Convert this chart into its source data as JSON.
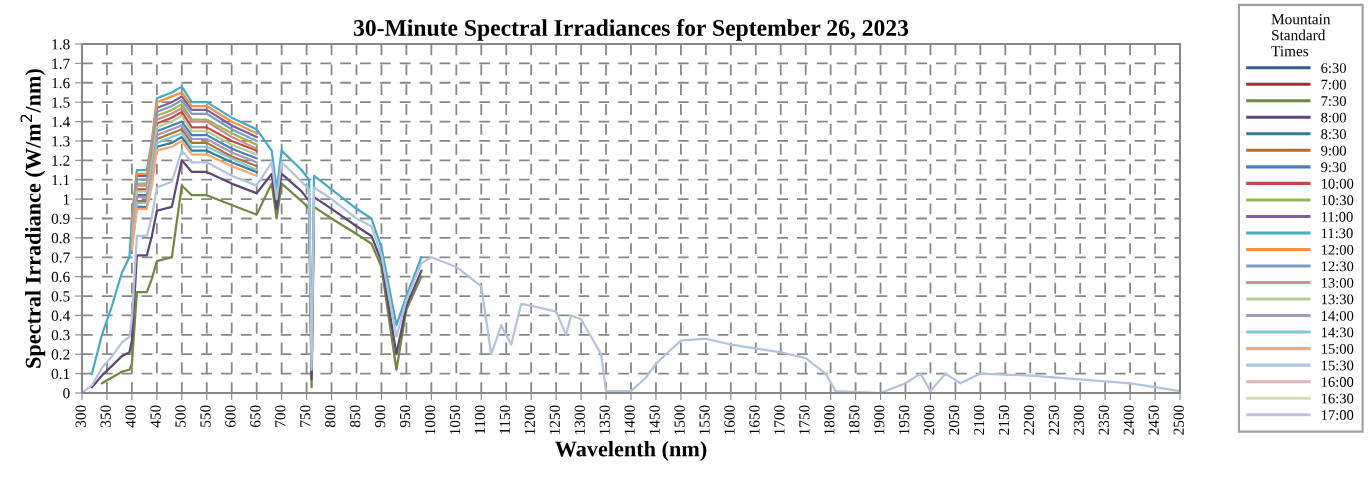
{
  "chart_data": {
    "type": "line",
    "title": "30-Minute Spectral Irradiances for September 26, 2023",
    "xlabel": "Wavelenth (nm)",
    "ylabel": "Spectral Irradiance (W/m$^{2}$/nm)",
    "legend_title": "Mountain Standard Times",
    "legend": "right",
    "grid": true,
    "marker": "none",
    "line_style": "solid",
    "xlim": [
      300,
      2500
    ],
    "xticks": [
      300,
      350,
      400,
      450,
      500,
      550,
      600,
      650,
      700,
      750,
      800,
      850,
      900,
      950,
      1000,
      1050,
      1100,
      1150,
      1200,
      1250,
      1300,
      1350,
      1400,
      1450,
      1500,
      1550,
      1600,
      1650,
      1700,
      1750,
      1800,
      1850,
      1900,
      1950,
      2000,
      2050,
      2100,
      2150,
      2200,
      2250,
      2300,
      2350,
      2400,
      2450,
      2500
    ],
    "ylim": [
      0,
      1.8
    ],
    "yticks": [
      0,
      0.1,
      0.2,
      0.3,
      0.4,
      0.5,
      0.6,
      0.7,
      0.8,
      0.9,
      1,
      1.1,
      1.2,
      1.3,
      1.4,
      1.5,
      1.6,
      1.7,
      1.8
    ],
    "x": [
      300,
      320,
      340,
      360,
      380,
      395,
      400,
      410,
      430,
      440,
      450,
      480,
      500,
      520,
      550,
      600,
      650,
      680,
      690,
      700,
      740,
      755,
      760,
      765,
      800,
      850,
      880,
      900,
      930,
      950,
      980,
      1000,
      1050,
      1100,
      1120,
      1140,
      1160,
      1180,
      1200,
      1250,
      1270,
      1280,
      1300,
      1340,
      1350,
      1400,
      1430,
      1450,
      1470,
      1500,
      1550,
      1600,
      1650,
      1700,
      1750,
      1790,
      1810,
      1900,
      1950,
      1980,
      2000,
      2030,
      2060,
      2100,
      2200,
      2300,
      2400,
      2450,
      2500
    ],
    "series": [
      {
        "name": "6:30",
        "color": "#385d8a",
        "values": [
          null,
          null,
          null,
          null,
          null,
          null,
          null,
          null,
          null,
          null,
          null,
          null,
          null,
          null,
          null,
          null,
          null,
          null,
          null,
          null,
          null,
          null,
          null,
          null,
          null,
          null,
          null,
          null,
          null,
          null,
          null,
          null,
          null,
          null,
          null,
          null,
          null,
          null,
          null,
          null,
          null,
          null,
          null,
          null,
          null,
          null,
          null,
          null,
          null,
          null,
          null,
          null,
          null,
          null,
          null,
          null,
          null,
          null,
          null,
          null,
          null,
          null,
          null,
          null,
          null,
          null,
          null,
          null,
          null
        ]
      },
      {
        "name": "7:00",
        "color": "#8c3836",
        "values": [
          null,
          null,
          null,
          null,
          null,
          null,
          null,
          null,
          null,
          null,
          null,
          null,
          null,
          null,
          null,
          null,
          null,
          null,
          null,
          null,
          null,
          null,
          null,
          null,
          null,
          null,
          null,
          null,
          null,
          null,
          null,
          null,
          null,
          null,
          null,
          null,
          null,
          null,
          null,
          null,
          null,
          null,
          null,
          null,
          null,
          null,
          null,
          null,
          null,
          null,
          null,
          null,
          null,
          null,
          null,
          null,
          null,
          null,
          null,
          null,
          null,
          null,
          null,
          null,
          null,
          null,
          null,
          null,
          null
        ]
      },
      {
        "name": "7:30",
        "color": "#71893f",
        "values": [
          null,
          null,
          0.05,
          0.08,
          0.11,
          0.12,
          0.15,
          0.52,
          0.52,
          0.59,
          0.68,
          0.7,
          1.07,
          1.02,
          1.02,
          0.97,
          0.92,
          1.08,
          0.9,
          1.08,
          0.99,
          0.95,
          0.03,
          0.96,
          0.9,
          0.82,
          0.77,
          0.65,
          0.12,
          0.43,
          0.6,
          null,
          null,
          null,
          null,
          null,
          null,
          null,
          null,
          null,
          null,
          null,
          null,
          null,
          null,
          null,
          null,
          null,
          null,
          null,
          null,
          null,
          null,
          null,
          null,
          null,
          null,
          null,
          null,
          null,
          null,
          null,
          null,
          null,
          null,
          null,
          null,
          null,
          null
        ]
      },
      {
        "name": "8:00",
        "color": "#5c4776",
        "values": [
          null,
          0.03,
          0.09,
          0.14,
          0.19,
          0.21,
          0.27,
          0.71,
          0.71,
          0.81,
          0.94,
          0.96,
          1.2,
          1.14,
          1.14,
          1.08,
          1.03,
          1.13,
          0.95,
          1.13,
          1.04,
          0.99,
          0.07,
          1.01,
          0.95,
          0.86,
          0.81,
          0.68,
          0.2,
          0.45,
          0.63,
          null,
          null,
          null,
          null,
          null,
          null,
          null,
          null,
          null,
          null,
          null,
          null,
          null,
          null,
          null,
          null,
          null,
          null,
          null,
          null,
          null,
          null,
          null,
          null,
          null,
          null,
          null,
          null,
          null,
          null,
          null,
          null,
          null,
          null,
          null,
          null,
          null,
          null
        ]
      },
      {
        "name": "8:30",
        "color": "#357d91",
        "values": [
          null,
          null,
          null,
          null,
          null,
          null,
          0.75,
          0.96,
          0.96,
          1.09,
          1.27,
          1.29,
          1.32,
          1.25,
          1.25,
          1.19,
          1.14,
          null,
          null,
          null,
          null,
          null,
          null,
          null,
          null,
          null,
          null,
          null,
          null,
          null,
          null,
          null,
          null,
          null,
          null,
          null,
          null,
          null,
          null,
          null,
          null,
          null,
          null,
          null,
          null,
          null,
          null,
          null,
          null,
          null,
          null,
          null,
          null,
          null,
          null,
          null,
          null,
          null,
          null,
          null,
          null,
          null,
          null,
          null,
          null,
          null,
          null,
          null,
          null
        ]
      },
      {
        "name": "9:00",
        "color": "#b66d31",
        "values": [
          null,
          null,
          null,
          null,
          null,
          null,
          0.78,
          0.99,
          0.99,
          1.12,
          1.31,
          1.34,
          1.36,
          1.29,
          1.29,
          1.22,
          1.17,
          null,
          null,
          null,
          null,
          null,
          null,
          null,
          null,
          null,
          null,
          null,
          null,
          null,
          null,
          null,
          null,
          null,
          null,
          null,
          null,
          null,
          null,
          null,
          null,
          null,
          null,
          null,
          null,
          null,
          null,
          null,
          null,
          null,
          null,
          null,
          null,
          null,
          null,
          null,
          null,
          null,
          null,
          null,
          null,
          null,
          null,
          null,
          null,
          null,
          null,
          null,
          null
        ]
      },
      {
        "name": "9:30",
        "color": "#4a7ebb",
        "values": [
          null,
          null,
          null,
          null,
          null,
          null,
          0.8,
          1.02,
          1.02,
          1.16,
          1.35,
          1.38,
          1.4,
          1.33,
          1.33,
          1.26,
          1.21,
          null,
          null,
          null,
          null,
          null,
          null,
          null,
          null,
          null,
          null,
          null,
          null,
          null,
          null,
          null,
          null,
          null,
          null,
          null,
          null,
          null,
          null,
          null,
          null,
          null,
          null,
          null,
          null,
          null,
          null,
          null,
          null,
          null,
          null,
          null,
          null,
          null,
          null,
          null,
          null,
          null,
          null,
          null,
          null,
          null,
          null,
          null,
          null,
          null,
          null,
          null,
          null
        ]
      },
      {
        "name": "10:00",
        "color": "#be4b48",
        "values": [
          null,
          null,
          null,
          null,
          null,
          null,
          0.82,
          1.05,
          1.05,
          1.19,
          1.39,
          1.42,
          1.45,
          1.37,
          1.37,
          1.3,
          1.25,
          null,
          null,
          null,
          null,
          null,
          null,
          null,
          null,
          null,
          null,
          null,
          null,
          null,
          null,
          null,
          null,
          null,
          null,
          null,
          null,
          null,
          null,
          null,
          null,
          null,
          null,
          null,
          null,
          null,
          null,
          null,
          null,
          null,
          null,
          null,
          null,
          null,
          null,
          null,
          null,
          null,
          null,
          null,
          null,
          null,
          null,
          null,
          null,
          null,
          null,
          null,
          null
        ]
      },
      {
        "name": "10:30",
        "color": "#98b954",
        "values": [
          null,
          null,
          null,
          null,
          null,
          null,
          0.85,
          1.08,
          1.08,
          1.23,
          1.43,
          1.46,
          1.49,
          1.41,
          1.41,
          1.34,
          1.28,
          null,
          null,
          null,
          null,
          null,
          null,
          null,
          null,
          null,
          null,
          null,
          null,
          null,
          null,
          null,
          null,
          null,
          null,
          null,
          null,
          null,
          null,
          null,
          null,
          null,
          null,
          null,
          null,
          null,
          null,
          null,
          null,
          null,
          null,
          null,
          null,
          null,
          null,
          null,
          null,
          null,
          null,
          null,
          null,
          null,
          null,
          null,
          null,
          null,
          null,
          null,
          null
        ]
      },
      {
        "name": "11:00",
        "color": "#7d60a0",
        "values": [
          null,
          null,
          null,
          null,
          null,
          null,
          0.87,
          1.12,
          1.12,
          1.26,
          1.47,
          1.5,
          1.53,
          1.46,
          1.46,
          1.38,
          1.32,
          null,
          null,
          null,
          null,
          null,
          null,
          null,
          null,
          null,
          null,
          null,
          null,
          null,
          null,
          null,
          null,
          null,
          null,
          null,
          null,
          null,
          null,
          null,
          null,
          null,
          null,
          null,
          null,
          null,
          null,
          null,
          null,
          null,
          null,
          null,
          null,
          null,
          null,
          null,
          null,
          null,
          null,
          null,
          null,
          null,
          null,
          null,
          null,
          null,
          null,
          null,
          null
        ]
      },
      {
        "name": "11:30",
        "color": "#46aac5",
        "values": [
          null,
          0.1,
          0.3,
          0.45,
          0.62,
          0.7,
          0.9,
          1.15,
          1.15,
          1.3,
          1.52,
          1.55,
          1.58,
          1.5,
          1.5,
          1.42,
          1.36,
          1.25,
          1.05,
          1.25,
          1.15,
          1.1,
          0.17,
          1.12,
          1.05,
          0.95,
          0.9,
          0.75,
          0.35,
          0.5,
          0.7,
          null,
          null,
          null,
          null,
          null,
          null,
          null,
          null,
          null,
          null,
          null,
          null,
          null,
          null,
          null,
          null,
          null,
          null,
          null,
          null,
          null,
          null,
          null,
          null,
          null,
          null,
          null,
          null,
          null,
          null,
          null,
          null,
          null,
          null,
          null,
          null,
          null,
          null
        ]
      },
      {
        "name": "12:00",
        "color": "#f69240",
        "values": [
          null,
          null,
          null,
          null,
          null,
          null,
          0.89,
          1.13,
          1.13,
          1.28,
          1.5,
          1.53,
          1.55,
          1.48,
          1.48,
          1.4,
          1.34,
          null,
          null,
          null,
          null,
          null,
          null,
          null,
          null,
          null,
          null,
          null,
          null,
          null,
          null,
          null,
          null,
          null,
          null,
          null,
          null,
          null,
          null,
          null,
          null,
          null,
          null,
          null,
          null,
          null,
          null,
          null,
          null,
          null,
          null,
          null,
          null,
          null,
          null,
          null,
          null,
          null,
          null,
          null,
          null,
          null,
          null,
          null,
          null,
          null,
          null,
          null,
          null
        ]
      },
      {
        "name": "12:30",
        "color": "#7e9bc8",
        "values": [
          null,
          null,
          null,
          null,
          null,
          null,
          0.86,
          1.1,
          1.1,
          1.24,
          1.45,
          1.48,
          1.51,
          1.44,
          1.44,
          1.36,
          1.3,
          null,
          null,
          null,
          null,
          null,
          null,
          null,
          null,
          null,
          null,
          null,
          null,
          null,
          null,
          null,
          null,
          null,
          null,
          null,
          null,
          null,
          null,
          null,
          null,
          null,
          null,
          null,
          null,
          null,
          null,
          null,
          null,
          null,
          null,
          null,
          null,
          null,
          null,
          null,
          null,
          null,
          null,
          null,
          null,
          null,
          null,
          null,
          null,
          null,
          null,
          null,
          null
        ]
      },
      {
        "name": "13:00",
        "color": "#ce8e8d",
        "values": [
          null,
          null,
          null,
          null,
          null,
          null,
          0.84,
          1.07,
          1.07,
          1.21,
          1.41,
          1.44,
          1.47,
          1.4,
          1.4,
          1.32,
          1.26,
          null,
          null,
          null,
          null,
          null,
          null,
          null,
          null,
          null,
          null,
          null,
          null,
          null,
          null,
          null,
          null,
          null,
          null,
          null,
          null,
          null,
          null,
          null,
          null,
          null,
          null,
          null,
          null,
          null,
          null,
          null,
          null,
          null,
          null,
          null,
          null,
          null,
          null,
          null,
          null,
          null,
          null,
          null,
          null,
          null,
          null,
          null,
          null,
          null,
          null,
          null,
          null
        ]
      },
      {
        "name": "13:30",
        "color": "#b6cd8f",
        "values": [
          null,
          null,
          null,
          null,
          null,
          null,
          0.81,
          1.04,
          1.04,
          1.17,
          1.37,
          1.4,
          1.43,
          1.35,
          1.35,
          1.28,
          1.23,
          null,
          null,
          null,
          null,
          null,
          null,
          null,
          null,
          null,
          null,
          null,
          null,
          null,
          null,
          null,
          null,
          null,
          null,
          null,
          null,
          null,
          null,
          null,
          null,
          null,
          null,
          null,
          null,
          null,
          null,
          null,
          null,
          null,
          null,
          null,
          null,
          null,
          null,
          null,
          null,
          null,
          null,
          null,
          null,
          null,
          null,
          null,
          null,
          null,
          null,
          null,
          null
        ]
      },
      {
        "name": "14:00",
        "color": "#a897bf",
        "values": [
          null,
          null,
          null,
          null,
          null,
          null,
          0.79,
          1.01,
          1.01,
          1.14,
          1.33,
          1.36,
          1.38,
          1.31,
          1.31,
          1.24,
          1.19,
          null,
          null,
          null,
          null,
          null,
          null,
          null,
          null,
          null,
          null,
          null,
          null,
          null,
          null,
          null,
          null,
          null,
          null,
          null,
          null,
          null,
          null,
          null,
          null,
          null,
          null,
          null,
          null,
          null,
          null,
          null,
          null,
          null,
          null,
          null,
          null,
          null,
          null,
          null,
          null,
          null,
          null,
          null,
          null,
          null,
          null,
          null,
          null,
          null,
          null,
          null,
          null
        ]
      },
      {
        "name": "14:30",
        "color": "#85c4d9",
        "values": [
          null,
          null,
          null,
          null,
          null,
          null,
          0.76,
          0.98,
          0.98,
          1.1,
          1.29,
          1.32,
          1.34,
          1.27,
          1.27,
          1.21,
          1.15,
          null,
          null,
          null,
          null,
          null,
          null,
          null,
          null,
          null,
          null,
          null,
          null,
          null,
          null,
          null,
          null,
          null,
          null,
          null,
          null,
          null,
          null,
          null,
          null,
          null,
          null,
          null,
          null,
          null,
          null,
          null,
          null,
          null,
          null,
          null,
          null,
          null,
          null,
          null,
          null,
          null,
          null,
          null,
          null,
          null,
          null,
          null,
          null,
          null,
          null,
          null,
          null
        ]
      },
      {
        "name": "15:00",
        "color": "#fba86e",
        "values": [
          null,
          null,
          null,
          null,
          null,
          null,
          0.74,
          0.95,
          0.95,
          1.07,
          1.25,
          1.27,
          1.3,
          1.23,
          1.23,
          1.17,
          1.12,
          null,
          null,
          null,
          null,
          null,
          null,
          null,
          null,
          null,
          null,
          null,
          null,
          null,
          null,
          null,
          null,
          null,
          null,
          null,
          null,
          null,
          null,
          null,
          null,
          null,
          null,
          null,
          null,
          null,
          null,
          null,
          null,
          null,
          null,
          null,
          null,
          null,
          null,
          null,
          null,
          null,
          null,
          null,
          null,
          null,
          null,
          null,
          null,
          null,
          null,
          null,
          null
        ]
      },
      {
        "name": "15:30",
        "color": "#b2c3de",
        "values": [
          0,
          0.04,
          0.13,
          0.19,
          0.26,
          0.29,
          0.38,
          0.81,
          0.81,
          0.91,
          1.06,
          1.09,
          1.25,
          1.19,
          1.19,
          1.12,
          1.07,
          1.19,
          1,
          1.19,
          1.09,
          1.05,
          0.12,
          1.06,
          1,
          0.9,
          0.86,
          0.71,
          0.29,
          0.48,
          0.67,
          0.7,
          0.65,
          0.55,
          0.2,
          0.35,
          0.25,
          0.46,
          0.45,
          0.42,
          0.3,
          0.4,
          0.38,
          0.2,
          0.01,
          0.01,
          0.08,
          0.15,
          0.2,
          0.27,
          0.28,
          0.25,
          0.23,
          0.21,
          0.18,
          0.1,
          0.01,
          0,
          0.05,
          0.1,
          0.01,
          0.1,
          0.05,
          0.1,
          0.09,
          0.07,
          0.05,
          0.03,
          0.01
        ]
      },
      {
        "name": "16:00",
        "color": "#dcb4b3",
        "values": [
          null,
          null,
          null,
          null,
          null,
          null,
          null,
          null,
          null,
          null,
          null,
          null,
          null,
          null,
          null,
          null,
          null,
          null,
          null,
          null,
          null,
          null,
          null,
          null,
          null,
          null,
          null,
          null,
          null,
          null,
          null,
          null,
          null,
          null,
          null,
          null,
          null,
          null,
          null,
          null,
          null,
          null,
          null,
          null,
          null,
          null,
          null,
          null,
          null,
          null,
          null,
          null,
          null,
          null,
          null,
          null,
          null,
          null,
          null,
          null,
          null,
          null,
          null,
          null,
          null,
          null,
          null,
          null,
          null
        ]
      },
      {
        "name": "16:30",
        "color": "#cfdfb8",
        "values": [
          null,
          null,
          null,
          null,
          null,
          null,
          null,
          null,
          null,
          null,
          null,
          null,
          null,
          null,
          null,
          null,
          null,
          null,
          null,
          null,
          null,
          null,
          null,
          null,
          null,
          null,
          null,
          null,
          null,
          null,
          null,
          null,
          null,
          null,
          null,
          null,
          null,
          null,
          null,
          null,
          null,
          null,
          null,
          null,
          null,
          null,
          null,
          null,
          null,
          null,
          null,
          null,
          null,
          null,
          null,
          null,
          null,
          null,
          null,
          null,
          null,
          null,
          null,
          null,
          null,
          null,
          null,
          null,
          null
        ]
      },
      {
        "name": "17:00",
        "color": "#c7bdd6",
        "values": [
          null,
          null,
          null,
          null,
          null,
          null,
          null,
          null,
          null,
          null,
          null,
          null,
          null,
          null,
          null,
          null,
          null,
          null,
          null,
          null,
          null,
          null,
          null,
          null,
          null,
          null,
          null,
          null,
          null,
          null,
          null,
          null,
          null,
          null,
          null,
          null,
          null,
          null,
          null,
          null,
          null,
          null,
          null,
          null,
          null,
          null,
          null,
          null,
          null,
          null,
          null,
          null,
          null,
          null,
          null,
          null,
          null,
          null,
          null,
          null,
          null,
          null,
          null,
          null,
          null,
          null,
          null,
          null,
          null
        ]
      }
    ]
  }
}
